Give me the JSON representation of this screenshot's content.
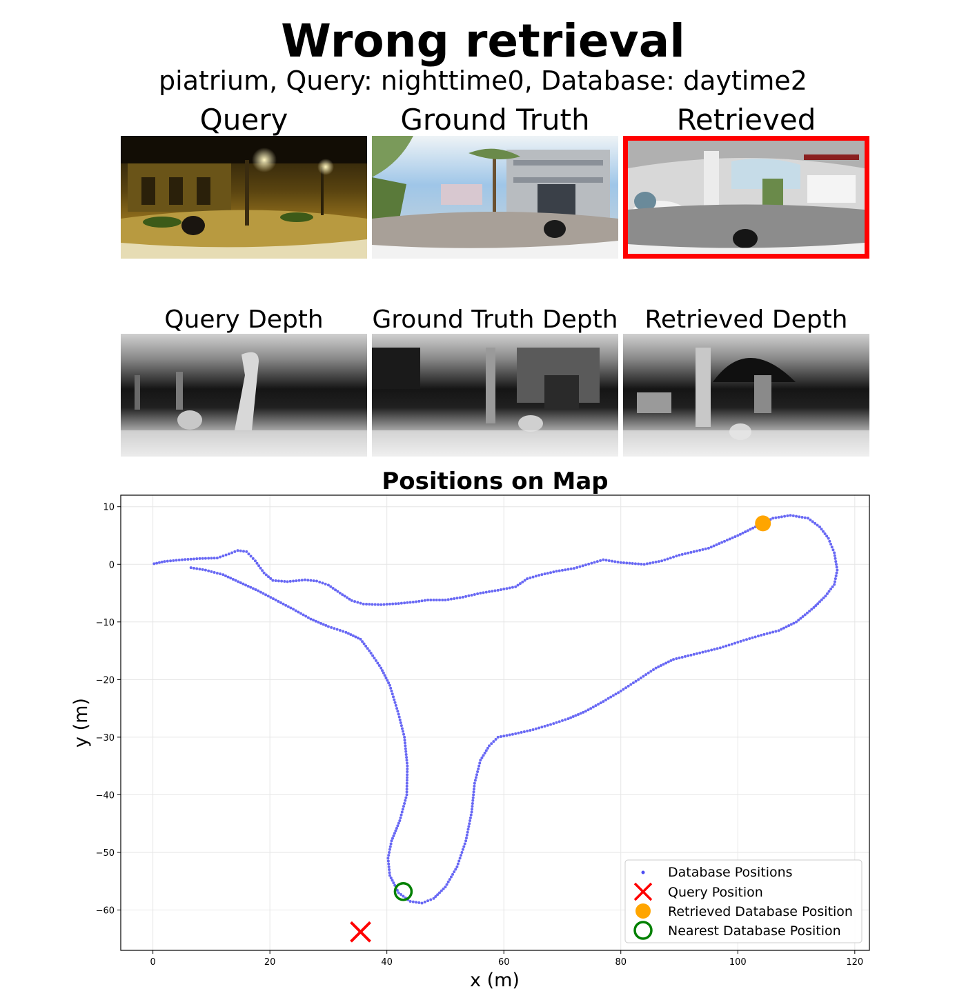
{
  "header": {
    "title": "Wrong retrieval",
    "subtitle": "piatrium, Query: nighttime0, Database: daytime2"
  },
  "panels": {
    "query": "Query",
    "ground_truth": "Ground Truth",
    "retrieved": "Retrieved",
    "query_depth": "Query Depth",
    "ground_truth_depth": "Ground Truth Depth",
    "retrieved_depth": "Retrieved Depth"
  },
  "colors": {
    "retrieved_frame": "#ff0000",
    "database": "#4d4df2",
    "query_marker": "#ff0000",
    "retrieved_marker": "#ffa500",
    "nearest_marker": "#008000"
  },
  "chart_data": {
    "type": "scatter",
    "title": "Positions on Map",
    "xlabel": "x (m)",
    "ylabel": "y (m)",
    "xlim": [
      -5.5,
      122.5
    ],
    "ylim": [
      -67,
      12
    ],
    "xticks": [
      0,
      20,
      40,
      60,
      80,
      100,
      120
    ],
    "yticks": [
      10,
      0,
      -10,
      -20,
      -30,
      -40,
      -50,
      -60
    ],
    "grid": true,
    "legend_position": "lower right",
    "legend": [
      "Database Positions",
      "Query Position",
      "Retrieved Database Position",
      "Nearest Database Position"
    ],
    "database_path": [
      [
        0.2,
        0.1
      ],
      [
        2,
        0.5
      ],
      [
        5,
        0.8
      ],
      [
        8,
        1.0
      ],
      [
        11,
        1.1
      ],
      [
        13,
        1.8
      ],
      [
        14.5,
        2.4
      ],
      [
        16,
        2.2
      ],
      [
        17.5,
        0.6
      ],
      [
        19,
        -1.5
      ],
      [
        20.5,
        -2.8
      ],
      [
        23,
        -3.0
      ],
      [
        26,
        -2.7
      ],
      [
        28,
        -2.9
      ],
      [
        30,
        -3.6
      ],
      [
        32,
        -5.0
      ],
      [
        34,
        -6.3
      ],
      [
        36,
        -6.9
      ],
      [
        39,
        -7.0
      ],
      [
        42,
        -6.8
      ],
      [
        45,
        -6.5
      ],
      [
        47,
        -6.2
      ],
      [
        50,
        -6.2
      ],
      [
        53,
        -5.7
      ],
      [
        56,
        -5.0
      ],
      [
        59,
        -4.5
      ],
      [
        62,
        -3.9
      ],
      [
        64,
        -2.5
      ],
      [
        66,
        -1.9
      ],
      [
        69,
        -1.2
      ],
      [
        72,
        -0.7
      ],
      [
        75,
        0.2
      ],
      [
        77,
        0.8
      ],
      [
        80,
        0.3
      ],
      [
        84,
        0.0
      ],
      [
        87,
        0.6
      ],
      [
        90,
        1.6
      ],
      [
        95,
        2.8
      ],
      [
        100,
        5.0
      ],
      [
        103,
        6.5
      ],
      [
        106,
        8.0
      ],
      [
        109,
        8.5
      ],
      [
        112,
        8.0
      ],
      [
        114,
        6.5
      ],
      [
        115.5,
        4.5
      ],
      [
        116.5,
        2.0
      ],
      [
        117,
        -1.0
      ],
      [
        116.5,
        -3.5
      ],
      [
        115,
        -5.5
      ],
      [
        113,
        -7.5
      ],
      [
        110,
        -10.0
      ],
      [
        107,
        -11.5
      ],
      [
        104,
        -12.3
      ],
      [
        101,
        -13.2
      ],
      [
        97,
        -14.5
      ],
      [
        93,
        -15.5
      ],
      [
        89,
        -16.5
      ],
      [
        86,
        -18.0
      ],
      [
        83,
        -20.0
      ],
      [
        80,
        -22.0
      ],
      [
        77,
        -23.8
      ],
      [
        74,
        -25.5
      ],
      [
        71,
        -26.8
      ],
      [
        68,
        -27.8
      ],
      [
        65,
        -28.7
      ],
      [
        62,
        -29.4
      ],
      [
        59,
        -30.0
      ],
      [
        57.5,
        -31.5
      ],
      [
        56,
        -34.0
      ],
      [
        55,
        -38.0
      ],
      [
        54.5,
        -43.0
      ],
      [
        53.5,
        -48.0
      ],
      [
        52,
        -52.5
      ],
      [
        50,
        -56.0
      ],
      [
        48,
        -58.0
      ],
      [
        46,
        -58.8
      ],
      [
        44,
        -58.5
      ],
      [
        42,
        -57.0
      ],
      [
        40.5,
        -54.0
      ],
      [
        40.2,
        -51.0
      ],
      [
        40.8,
        -48.0
      ],
      [
        42.2,
        -44.5
      ],
      [
        43.4,
        -40.0
      ],
      [
        43.5,
        -35.0
      ],
      [
        43,
        -30.0
      ],
      [
        42,
        -26.0
      ],
      [
        40.5,
        -21.0
      ],
      [
        39,
        -18.0
      ],
      [
        37,
        -15.0
      ],
      [
        35.5,
        -13.0
      ],
      [
        33,
        -11.8
      ],
      [
        30,
        -10.8
      ],
      [
        27,
        -9.5
      ],
      [
        24,
        -7.8
      ],
      [
        21,
        -6.2
      ],
      [
        18,
        -4.6
      ],
      [
        15,
        -3.2
      ],
      [
        12,
        -1.8
      ],
      [
        9,
        -1.0
      ],
      [
        6,
        -0.5
      ]
    ],
    "query_position": [
      35.5,
      -63.8
    ],
    "retrieved_position": [
      104.3,
      7.1
    ],
    "nearest_position": [
      42.8,
      -56.8
    ]
  }
}
